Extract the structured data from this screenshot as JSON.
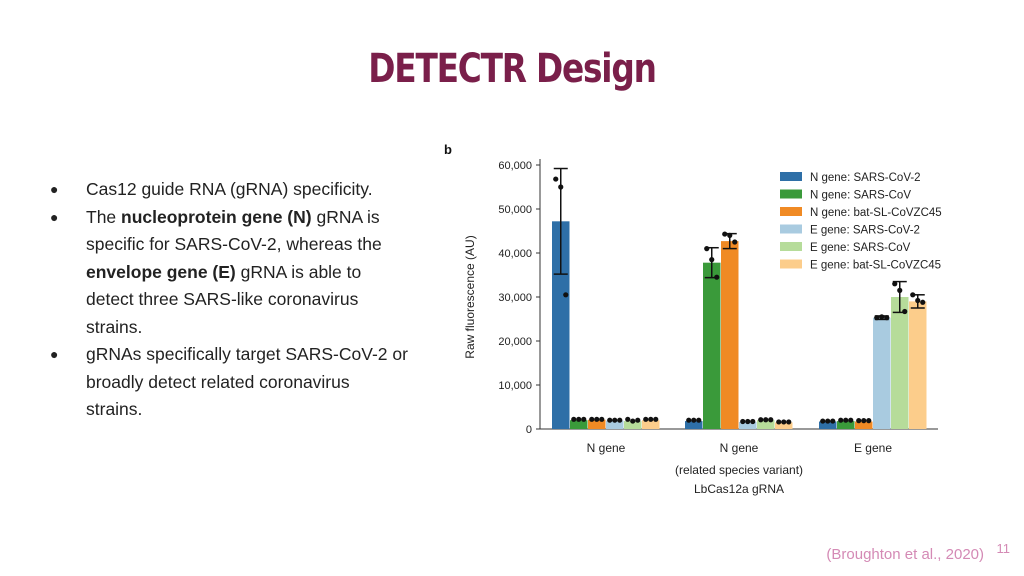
{
  "slide": {
    "title": "DETECTR Design",
    "bullets": [
      {
        "text": "Cas12 guide RNA (gRNA) specificity."
      },
      {
        "pre": "The ",
        "bold1": "nucleoprotein gene (N)",
        "mid": " gRNA is specific for SARS-CoV-2, whereas the ",
        "bold2": "envelope gene (E)",
        "post": " gRNA is able to detect three SARS-like coronavirus strains."
      },
      {
        "text": "gRNAs specifically target SARS-CoV-2 or broadly detect related coronavirus strains."
      }
    ],
    "bullet_glyph": "●",
    "citation": "(Broughton et al., 2020)",
    "page_number": "11"
  },
  "chart_data": {
    "type": "bar",
    "panel_label": "b",
    "categories": [
      "N gene",
      "N gene",
      "E gene"
    ],
    "category_sublabel": "(related species variant)",
    "xlabel": "LbCas12a gRNA",
    "ylabel": "Raw fluorescence (AU)",
    "ylim": [
      0,
      60000
    ],
    "yticks": [
      "0",
      "10,000",
      "20,000",
      "30,000",
      "40,000",
      "50,000",
      "60,000"
    ],
    "ytick_values": [
      0,
      10000,
      20000,
      30000,
      40000,
      50000,
      60000
    ],
    "legend_position": "top-right",
    "grid": false,
    "series": [
      {
        "name": "N gene: SARS-CoV-2",
        "color": "#2e6fa7",
        "values": [
          47200,
          1800,
          1700
        ],
        "errors": [
          12000,
          100,
          100
        ],
        "points": [
          [
            56800,
            55000,
            30500
          ],
          [
            2000,
            2000,
            2000
          ],
          [
            1800,
            1800,
            1800
          ]
        ]
      },
      {
        "name": "N gene: SARS-CoV",
        "color": "#3a9a3a",
        "values": [
          2000,
          37800,
          1800
        ],
        "errors": [
          100,
          3400,
          100
        ],
        "points": [
          [
            2200,
            2200,
            2200
          ],
          [
            41000,
            38500,
            34500
          ],
          [
            2000,
            2000,
            2000
          ]
        ]
      },
      {
        "name": "N gene: bat-SL-CoVZC45",
        "color": "#f08a24",
        "values": [
          2100,
          42700,
          1700
        ],
        "errors": [
          100,
          1700,
          100
        ],
        "points": [
          [
            2200,
            2200,
            2200
          ],
          [
            44300,
            44000,
            42500
          ],
          [
            1900,
            1900,
            1900
          ]
        ]
      },
      {
        "name": "E gene: SARS-CoV-2",
        "color": "#a9cbe0",
        "values": [
          1900,
          1600,
          25300
        ],
        "errors": [
          100,
          100,
          400
        ],
        "points": [
          [
            2000,
            2000,
            2000
          ],
          [
            1700,
            1700,
            1700
          ],
          [
            25300,
            25500,
            25300
          ]
        ]
      },
      {
        "name": "E gene: SARS-CoV",
        "color": "#b6dc9a",
        "values": [
          1800,
          2000,
          30000
        ],
        "errors": [
          200,
          100,
          3500
        ],
        "points": [
          [
            2200,
            1800,
            2000
          ],
          [
            2100,
            2100,
            2100
          ],
          [
            33000,
            31500,
            26700
          ]
        ]
      },
      {
        "name": "E gene: bat-SL-CoVZC45",
        "color": "#fccd8b",
        "values": [
          2000,
          1500,
          29000
        ],
        "errors": [
          100,
          100,
          1500
        ],
        "points": [
          [
            2200,
            2200,
            2200
          ],
          [
            1600,
            1600,
            1600
          ],
          [
            30500,
            29200,
            28800
          ]
        ]
      }
    ]
  }
}
